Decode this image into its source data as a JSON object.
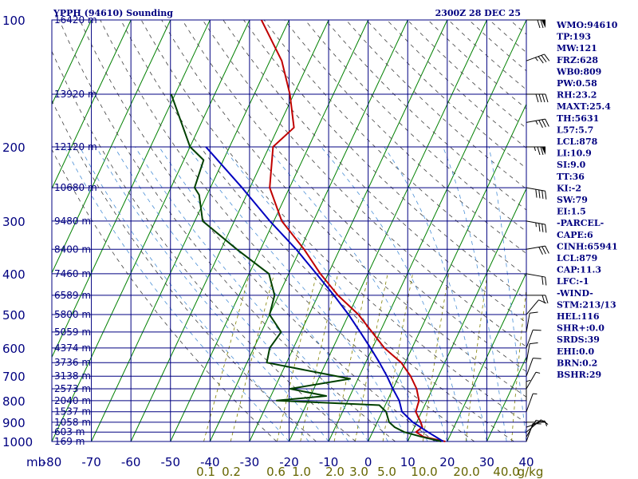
{
  "header": {
    "title": "YPPH (94610) Sounding",
    "datetime": "2300Z 28 DEC 25"
  },
  "colors": {
    "axis": "#000080",
    "isotherm": "#008000",
    "dry_adiabat": "#404040",
    "moist_adiabat": "#4a8fd6",
    "mixing_ratio": "#808000",
    "temperature": "#c00000",
    "dewpoint": "#004000",
    "parcel": "#0000c0",
    "wind": "#000000"
  },
  "chart_data": {
    "type": "line",
    "title": "YPPH (94610) Sounding",
    "y_scale": "log-pressure",
    "pressure_label": "mb",
    "pressure_ticks": [
      100,
      200,
      300,
      400,
      500,
      600,
      700,
      800,
      900,
      1000
    ],
    "pressure_range": [
      1000,
      100
    ],
    "temperature_ticks": [
      -80,
      -70,
      -60,
      -50,
      -40,
      -30,
      -20,
      -10,
      0,
      10,
      20,
      30,
      40
    ],
    "temperature_range_at_surface": [
      -80,
      40
    ],
    "skew_degrees_per_decade": 50,
    "height_labels": [
      {
        "p": 100,
        "label": "16420 m"
      },
      {
        "p": 150,
        "label": "13920 m"
      },
      {
        "p": 200,
        "label": "12120 m"
      },
      {
        "p": 250,
        "label": "10680 m"
      },
      {
        "p": 300,
        "label": "9480 m"
      },
      {
        "p": 350,
        "label": "8400 m"
      },
      {
        "p": 400,
        "label": "7460 m"
      },
      {
        "p": 450,
        "label": "6589 m"
      },
      {
        "p": 500,
        "label": "5800 m"
      },
      {
        "p": 550,
        "label": "5059 m"
      },
      {
        "p": 600,
        "label": "4374 m"
      },
      {
        "p": 650,
        "label": "3736 m"
      },
      {
        "p": 700,
        "label": "3138 m"
      },
      {
        "p": 750,
        "label": "2573 m"
      },
      {
        "p": 800,
        "label": "2040 m"
      },
      {
        "p": 850,
        "label": "1537 m"
      },
      {
        "p": 900,
        "label": "1058 m"
      },
      {
        "p": 950,
        "label": "603 m"
      },
      {
        "p": 1000,
        "label": "169 m"
      }
    ],
    "mixing_ratio_labels": [
      "0.1",
      "0.2",
      "0.6",
      "1.0",
      "2.0",
      "3.0",
      "5.0",
      "10.0",
      "20.0",
      "40.0",
      "g/kg"
    ],
    "mixing_ratio_values": [
      0.1,
      0.2,
      0.6,
      1.0,
      2.0,
      3.0,
      5.0,
      10.0,
      20.0,
      40.0
    ],
    "series": [
      {
        "points": [
          {
            "p": 1000,
            "t": 19.5
          },
          {
            "p": 975,
            "t": 13.5
          },
          {
            "p": 950,
            "t": 11
          },
          {
            "p": 925,
            "t": 12
          },
          {
            "p": 900,
            "t": 11
          },
          {
            "p": 850,
            "t": 8.5
          },
          {
            "p": 800,
            "t": 8
          },
          {
            "p": 750,
            "t": 6
          },
          {
            "p": 700,
            "t": 3
          },
          {
            "p": 650,
            "t": -1
          },
          {
            "p": 600,
            "t": -7
          },
          {
            "p": 550,
            "t": -12
          },
          {
            "p": 500,
            "t": -17.5
          },
          {
            "p": 450,
            "t": -25
          },
          {
            "p": 400,
            "t": -32
          },
          {
            "p": 350,
            "t": -39
          },
          {
            "p": 300,
            "t": -48
          },
          {
            "p": 250,
            "t": -55
          },
          {
            "p": 200,
            "t": -59
          },
          {
            "p": 180,
            "t": -56
          },
          {
            "p": 150,
            "t": -61
          },
          {
            "p": 125,
            "t": -67
          },
          {
            "p": 100,
            "t": -77
          }
        ]
      },
      {
        "points": [
          {
            "p": 1000,
            "t": 18.5
          },
          {
            "p": 975,
            "t": 13
          },
          {
            "p": 950,
            "t": 8
          },
          {
            "p": 925,
            "t": 5
          },
          {
            "p": 900,
            "t": 3
          },
          {
            "p": 850,
            "t": 1
          },
          {
            "p": 820,
            "t": -1.5
          },
          {
            "p": 800,
            "t": -28
          },
          {
            "p": 780,
            "t": -16
          },
          {
            "p": 750,
            "t": -26
          },
          {
            "p": 710,
            "t": -12
          },
          {
            "p": 650,
            "t": -35
          },
          {
            "p": 600,
            "t": -36
          },
          {
            "p": 550,
            "t": -35
          },
          {
            "p": 500,
            "t": -40
          },
          {
            "p": 450,
            "t": -41
          },
          {
            "p": 400,
            "t": -45
          },
          {
            "p": 350,
            "t": -56
          },
          {
            "p": 300,
            "t": -68
          },
          {
            "p": 260,
            "t": -72
          },
          {
            "p": 250,
            "t": -74
          },
          {
            "p": 215,
            "t": -75
          },
          {
            "p": 200,
            "t": -80
          },
          {
            "p": 150,
            "t": -91
          }
        ]
      },
      {
        "points": [
          {
            "p": 1000,
            "t": 19
          },
          {
            "p": 950,
            "t": 14
          },
          {
            "p": 900,
            "t": 9
          },
          {
            "p": 850,
            "t": 5
          },
          {
            "p": 800,
            "t": 3
          },
          {
            "p": 750,
            "t": 0
          },
          {
            "p": 700,
            "t": -3
          },
          {
            "p": 650,
            "t": -6.5
          },
          {
            "p": 600,
            "t": -10.5
          },
          {
            "p": 550,
            "t": -15
          },
          {
            "p": 500,
            "t": -20
          },
          {
            "p": 450,
            "t": -26
          },
          {
            "p": 400,
            "t": -33
          },
          {
            "p": 350,
            "t": -41
          },
          {
            "p": 300,
            "t": -51
          },
          {
            "p": 250,
            "t": -62
          },
          {
            "p": 200,
            "t": -76
          }
        ]
      }
    ],
    "wind_barbs": [
      {
        "p": 1000,
        "dir": 200,
        "spd": 10
      },
      {
        "p": 975,
        "dir": 210,
        "spd": 10
      },
      {
        "p": 950,
        "dir": 230,
        "spd": 10
      },
      {
        "p": 925,
        "dir": 250,
        "spd": 5
      },
      {
        "p": 900,
        "dir": 270,
        "spd": 5
      },
      {
        "p": 850,
        "dir": 200,
        "spd": 5
      },
      {
        "p": 800,
        "dir": 180,
        "spd": 5
      },
      {
        "p": 750,
        "dir": 210,
        "spd": 5
      },
      {
        "p": 700,
        "dir": 200,
        "spd": 10
      },
      {
        "p": 650,
        "dir": 190,
        "spd": 10
      },
      {
        "p": 600,
        "dir": 200,
        "spd": 10
      },
      {
        "p": 550,
        "dir": 190,
        "spd": 10
      },
      {
        "p": 500,
        "dir": 220,
        "spd": 10
      },
      {
        "p": 450,
        "dir": 270,
        "spd": 20
      },
      {
        "p": 400,
        "dir": 280,
        "spd": 20
      },
      {
        "p": 350,
        "dir": 260,
        "spd": 30
      },
      {
        "p": 300,
        "dir": 280,
        "spd": 35
      },
      {
        "p": 250,
        "dir": 280,
        "spd": 40
      },
      {
        "p": 200,
        "dir": 270,
        "spd": 75
      },
      {
        "p": 175,
        "dir": 260,
        "spd": 35
      },
      {
        "p": 150,
        "dir": 270,
        "spd": 40
      },
      {
        "p": 125,
        "dir": 250,
        "spd": 35
      },
      {
        "p": 100,
        "dir": 270,
        "spd": 70
      }
    ]
  },
  "indices": [
    "WMO:94610",
    "TP:193",
    "MW:121",
    "FRZ:628",
    "WB0:809",
    "PW:0.58",
    "RH:23.2",
    "MAXT:25.4",
    "TH:5631",
    "L57:5.7",
    "LCL:878",
    "LI:10.9",
    "SI:9.0",
    "TT:36",
    "KI:-2",
    "SW:79",
    "EI:1.5",
    "-PARCEL-",
    "CAPE:6",
    "CINH:65941",
    "LCL:879",
    "CAP:11.3",
    "LFC:-1",
    "-WIND-",
    "STM:213/13",
    "HEL:116",
    "SHR+:0.0",
    "SRDS:39",
    "EHI:0.0",
    "BRN:0.2",
    "BSHR:29"
  ]
}
